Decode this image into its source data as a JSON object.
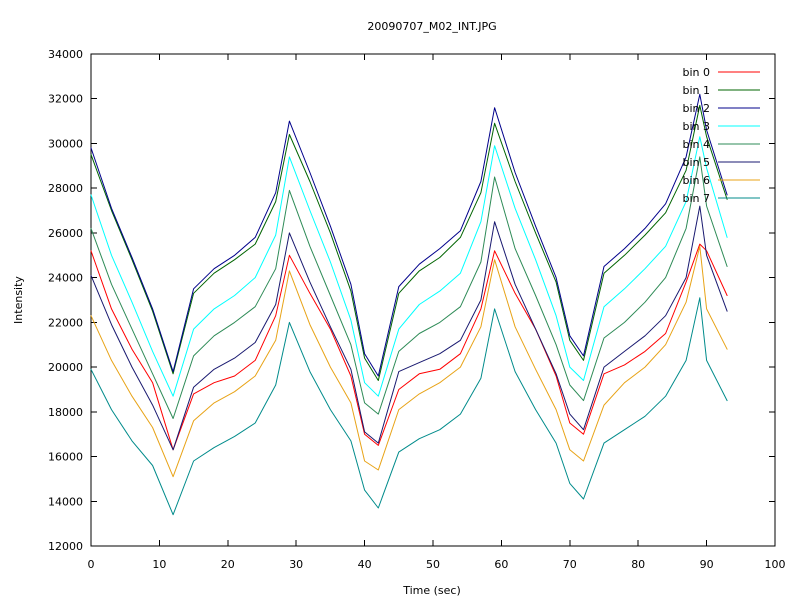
{
  "chart_data": {
    "type": "line",
    "title": "20090707_M02_INT.JPG",
    "xlabel": "Time (sec)",
    "ylabel": "Intensity",
    "xlim": [
      0,
      100
    ],
    "ylim": [
      12000,
      34000
    ],
    "xticks": [
      0,
      10,
      20,
      30,
      40,
      50,
      60,
      70,
      80,
      90,
      100
    ],
    "yticks": [
      12000,
      14000,
      16000,
      18000,
      20000,
      22000,
      24000,
      26000,
      28000,
      30000,
      32000,
      34000
    ],
    "xtick_labels": [
      "0",
      "10",
      "20",
      "30",
      "40",
      "50",
      "60",
      "70",
      "80",
      "90",
      "100"
    ],
    "ytick_labels": [
      "12000",
      "14000",
      "16000",
      "18000",
      "20000",
      "22000",
      "24000",
      "26000",
      "28000",
      "30000",
      "32000",
      "34000"
    ],
    "grid": false,
    "legend_position": "top-right",
    "x": [
      0,
      3,
      6,
      9,
      12,
      15,
      18,
      21,
      24,
      27,
      29,
      32,
      35,
      38,
      40,
      42,
      45,
      48,
      51,
      54,
      57,
      59,
      62,
      65,
      68,
      70,
      72,
      75,
      78,
      81,
      84,
      87,
      89,
      90,
      93
    ],
    "series": [
      {
        "name": "bin 0",
        "color": "#ff0000",
        "values": [
          25200,
          22600,
          20800,
          19300,
          16300,
          18800,
          19300,
          19600,
          20300,
          22300,
          25000,
          23300,
          21700,
          19600,
          17000,
          16500,
          19000,
          19700,
          19900,
          20600,
          22600,
          25200,
          23300,
          21700,
          19600,
          17500,
          17000,
          19700,
          20100,
          20700,
          21500,
          23800,
          25500,
          25200,
          23200
        ]
      },
      {
        "name": "bin 1",
        "color": "#006400",
        "values": [
          29500,
          27000,
          24800,
          22500,
          19700,
          23300,
          24200,
          24800,
          25500,
          27400,
          30400,
          28300,
          26000,
          23400,
          20400,
          19400,
          23300,
          24300,
          24900,
          25800,
          27800,
          30900,
          28300,
          26000,
          23800,
          21200,
          20300,
          24200,
          25000,
          25900,
          26900,
          28800,
          31700,
          30300,
          27500
        ]
      },
      {
        "name": "bin 2",
        "color": "#00008b",
        "values": [
          29800,
          27100,
          24900,
          22600,
          19800,
          23500,
          24400,
          25000,
          25800,
          27800,
          31000,
          28700,
          26300,
          23700,
          20600,
          19600,
          23600,
          24600,
          25300,
          26100,
          28300,
          31600,
          28700,
          26300,
          24000,
          21400,
          20500,
          24500,
          25300,
          26200,
          27300,
          29400,
          32200,
          30600,
          27700
        ]
      },
      {
        "name": "bin 3",
        "color": "#00ffff",
        "values": [
          27700,
          25000,
          22900,
          20700,
          18700,
          21700,
          22600,
          23200,
          24000,
          25900,
          29400,
          27000,
          24700,
          22100,
          19300,
          18700,
          21700,
          22800,
          23400,
          24200,
          26500,
          29900,
          27100,
          24800,
          22300,
          20000,
          19400,
          22700,
          23500,
          24400,
          25400,
          27400,
          30300,
          28900,
          25800
        ]
      },
      {
        "name": "bin 4",
        "color": "#2e8b57",
        "values": [
          26200,
          23700,
          21700,
          19700,
          17700,
          20500,
          21400,
          22000,
          22700,
          24400,
          27900,
          25400,
          23200,
          21000,
          18400,
          17900,
          20700,
          21500,
          22000,
          22700,
          24700,
          28500,
          25300,
          23200,
          21000,
          19200,
          18500,
          21300,
          22000,
          22900,
          24000,
          26200,
          29400,
          27200,
          24500
        ]
      },
      {
        "name": "bin 5",
        "color": "#191970",
        "values": [
          24100,
          21900,
          20000,
          18300,
          16300,
          19100,
          19900,
          20400,
          21100,
          22800,
          26000,
          23800,
          21800,
          19900,
          17100,
          16600,
          19800,
          20200,
          20600,
          21200,
          23000,
          26500,
          23700,
          21700,
          19700,
          17900,
          17200,
          20000,
          20700,
          21400,
          22300,
          24000,
          27200,
          25000,
          22500
        ]
      },
      {
        "name": "bin 6",
        "color": "#e8a317",
        "values": [
          22300,
          20300,
          18700,
          17300,
          15100,
          17600,
          18400,
          18900,
          19600,
          21200,
          24300,
          21900,
          20000,
          18400,
          15800,
          15400,
          18100,
          18800,
          19300,
          20000,
          21800,
          24800,
          21800,
          19900,
          18100,
          16300,
          15800,
          18300,
          19300,
          20000,
          21000,
          22900,
          25400,
          22600,
          20800
        ]
      },
      {
        "name": "bin 7",
        "color": "#008b8b",
        "values": [
          19900,
          18100,
          16700,
          15600,
          13400,
          15800,
          16400,
          16900,
          17500,
          19200,
          22000,
          19800,
          18100,
          16700,
          14500,
          13700,
          16200,
          16800,
          17200,
          17900,
          19500,
          22600,
          19800,
          18100,
          16600,
          14800,
          14100,
          16600,
          17200,
          17800,
          18700,
          20300,
          23100,
          20300,
          18500
        ]
      }
    ]
  }
}
